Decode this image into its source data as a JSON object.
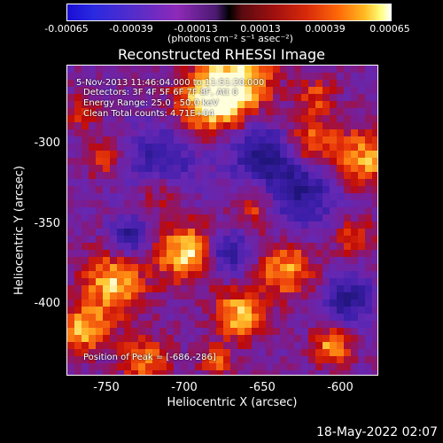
{
  "colorbar": {
    "ticks": [
      "-0.00065",
      "-0.00039",
      "-0.00013",
      "0.00013",
      "0.00039",
      "0.00065"
    ],
    "units": "(photons cm⁻² s⁻¹ asec⁻²)"
  },
  "title": "Reconstructed RHESSI Image",
  "info": {
    "time": "5-Nov-2013 11:46:04.000 to 11:51:20.000",
    "detectors": "Detectors: 3F 4F 5F 6F 7F 8F, Att 0",
    "energy": "Energy Range: 25.0 - 50.0 keV",
    "clean": "Clean    Total counts: 4.71E+04",
    "peak": "Position of Peak = [-686,-286]"
  },
  "axes": {
    "xlabel": "Heliocentric X (arcsec)",
    "ylabel": "Heliocentric Y (arcsec)",
    "xticks": [
      "-750",
      "-700",
      "-650",
      "-600"
    ],
    "yticks": [
      "-300",
      "-350",
      "-400"
    ]
  },
  "footer": "18-May-2022 02:07"
}
